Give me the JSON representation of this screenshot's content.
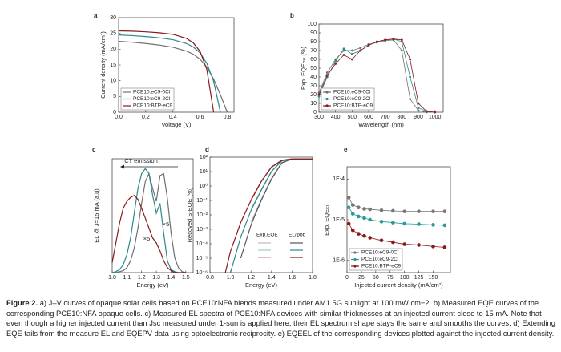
{
  "chart_data": [
    {
      "type": "line",
      "panel": "a",
      "xlabel": "Voltage (V)",
      "ylabel": "Current density (mA/cm²)",
      "x": [
        0,
        0.1,
        0.2,
        0.3,
        0.4,
        0.5,
        0.55,
        0.6,
        0.65,
        0.7,
        0.75,
        0.8
      ],
      "xlim": [
        0,
        0.85
      ],
      "xticks": [
        {
          "value": 0,
          "label": "0.0"
        },
        0.2,
        0.4,
        0.6,
        0.8
      ],
      "ylim": [
        0,
        30
      ],
      "yticks": [
        0,
        5,
        10,
        15,
        20,
        25,
        30
      ],
      "legend": "lower left",
      "series": [
        {
          "name": "PCE10:eC9-0Cl",
          "color": "#707070",
          "values": [
            22.5,
            22.2,
            21.8,
            21.3,
            20.6,
            19.4,
            18.4,
            16.8,
            14.3,
            10.5,
            5.5,
            0
          ]
        },
        {
          "name": "PCE10:eC9-2Cl",
          "color": "#2a8a8a",
          "values": [
            24.5,
            24.3,
            24.0,
            23.6,
            23.0,
            21.8,
            20.7,
            18.8,
            15.5,
            9.8,
            0,
            null
          ]
        },
        {
          "name": "PCE10:BTP-eC9",
          "color": "#8b1a1a",
          "values": [
            25.8,
            25.7,
            25.5,
            25.2,
            24.7,
            23.4,
            22.0,
            19.3,
            13.5,
            0,
            null,
            null
          ]
        }
      ]
    },
    {
      "type": "line",
      "panel": "b",
      "xlabel": "Wavelength (nm)",
      "ylabel": "Exp. EQE",
      "ylabel_sub": "PV",
      "ylabel_tail": " (%)",
      "markers": true,
      "x": [
        300,
        350,
        400,
        450,
        500,
        550,
        600,
        650,
        700,
        750,
        800,
        850,
        900,
        950,
        1000
      ],
      "xlim": [
        300,
        1050
      ],
      "xticks": [
        300,
        400,
        500,
        600,
        700,
        800,
        900,
        1000
      ],
      "ylim": [
        0,
        100
      ],
      "yticks": [
        0,
        10,
        20,
        30,
        40,
        50,
        60,
        70,
        80,
        90,
        100
      ],
      "legend": "lower left",
      "series": [
        {
          "name": "PCE10:eC9-0Cl",
          "color": "#707070",
          "values": [
            22,
            45,
            60,
            70,
            70,
            73,
            77,
            79,
            81,
            82,
            70,
            15,
            2,
            0,
            0
          ]
        },
        {
          "name": "PCE10:eC9-2Cl",
          "color": "#2a8a8a",
          "values": [
            18,
            40,
            58,
            72,
            66,
            70,
            76,
            80,
            82,
            83,
            80,
            40,
            5,
            1,
            0
          ]
        },
        {
          "name": "PCE10:BTP-eC9",
          "color": "#8b1a1a",
          "values": [
            20,
            42,
            55,
            65,
            60,
            70,
            76,
            80,
            82,
            83,
            82,
            60,
            10,
            1,
            0
          ]
        }
      ]
    },
    {
      "type": "line",
      "panel": "c",
      "xlabel": "Energy (eV)",
      "ylabel": "EL @ J=15 mA (a.u)",
      "annotations": [
        "CT emission",
        "×5",
        "×5"
      ],
      "x": [
        1.0,
        1.025,
        1.05,
        1.075,
        1.1,
        1.125,
        1.15,
        1.175,
        1.2,
        1.225,
        1.25,
        1.275,
        1.3,
        1.325,
        1.35,
        1.375,
        1.4,
        1.425,
        1.45,
        1.475,
        1.5
      ],
      "xlim": [
        1.0,
        1.55
      ],
      "xticks": [
        {
          "value": 1.0,
          "label": "1.0"
        },
        1.1,
        1.2,
        1.3,
        1.4,
        1.5
      ],
      "ylim": [
        0,
        1.15
      ],
      "series": [
        {
          "color": "#707070",
          "values": [
            0,
            0,
            0.01,
            0.02,
            0.05,
            0.12,
            0.25,
            0.45,
            0.7,
            0.92,
            1.0,
            0.85,
            0.72,
            0.98,
            1.0,
            0.75,
            0.4,
            0.15,
            0.05,
            0.01,
            0
          ]
        },
        {
          "color": "#2a8a8a",
          "values": [
            0,
            0.01,
            0.03,
            0.08,
            0.18,
            0.35,
            0.6,
            0.85,
            1.0,
            1.05,
            1.0,
            0.78,
            0.6,
            0.7,
            0.4,
            0.12,
            0.03,
            0.01,
            0,
            0,
            0
          ]
        },
        {
          "color": "#8b1a1a",
          "values": [
            0.1,
            0.3,
            0.5,
            0.65,
            0.72,
            0.76,
            0.78,
            0.74,
            0.65,
            0.55,
            0.45,
            0.35,
            0.3,
            0.22,
            0.12,
            0.05,
            0.02,
            0,
            0,
            0,
            0
          ]
        }
      ]
    },
    {
      "type": "line",
      "panel": "d",
      "xlabel": "Energy (eV)",
      "ylabel": "Recoved S-EQE (%)",
      "ylog": true,
      "legend_headers": [
        "Exp.EQE",
        "EL/φbb"
      ],
      "x": [
        0.95,
        1.0,
        1.1,
        1.2,
        1.3,
        1.4,
        1.5,
        1.6,
        1.7,
        1.8
      ],
      "xlim": [
        0.8,
        1.8
      ],
      "xticks": [
        0.8,
        {
          "value": 1.0,
          "label": "1.0"
        },
        1.2,
        1.4,
        1.6,
        1.8
      ],
      "ylim": [
        1e-06,
        100
      ],
      "yticks": [
        {
          "value": 1e-06,
          "label": "10⁻⁶"
        },
        {
          "value": 1e-05,
          "label": "10⁻⁵"
        },
        {
          "value": 0.0001,
          "label": "10⁻⁴"
        },
        {
          "value": 0.001,
          "label": "10⁻³"
        },
        {
          "value": 0.01,
          "label": "10⁻²"
        },
        {
          "value": 0.1,
          "label": "10⁻¹"
        },
        {
          "value": 1,
          "label": "10⁰"
        },
        {
          "value": 10,
          "label": "10¹"
        },
        {
          "value": 100,
          "label": "10²"
        }
      ],
      "series": [
        {
          "color": "#bbbbbb",
          "values": [
            null,
            null,
            null,
            0.003,
            0.12,
            3.5,
            42,
            76,
            76,
            76
          ]
        },
        {
          "color": "#99cccc",
          "values": [
            null,
            null,
            null,
            0.025,
            0.55,
            11,
            57,
            76,
            76,
            76
          ]
        },
        {
          "color": "#cc9999",
          "values": [
            null,
            null,
            null,
            0.12,
            2.2,
            22,
            62,
            76,
            76,
            76
          ]
        },
        {
          "color": "#555555",
          "values": [
            null,
            null,
            1e-05,
            0.002,
            0.1,
            3,
            40,
            75,
            75,
            75
          ]
        },
        {
          "color": "#2a8a8a",
          "values": [
            null,
            1e-06,
            0.0003,
            0.02,
            0.5,
            10,
            55,
            75,
            75,
            75
          ]
        },
        {
          "color": "#8b1a1a",
          "values": [
            1e-06,
            3e-05,
            0.003,
            0.1,
            2,
            20,
            60,
            75,
            75,
            75
          ]
        }
      ]
    },
    {
      "type": "line",
      "panel": "e",
      "xlabel": "Injected current density (mA/cm²)",
      "ylabel": "Exp. EQE",
      "ylabel_sub": "EL",
      "ylog": true,
      "markers": true,
      "x": [
        3,
        10,
        20,
        30,
        40,
        60,
        80,
        100,
        125,
        150,
        170
      ],
      "xlim": [
        0,
        180
      ],
      "xticks": [
        0,
        25,
        50,
        75,
        100,
        125,
        150
      ],
      "ylim": [
        5e-07,
        0.0002
      ],
      "yticks": [
        {
          "value": 1e-06,
          "label": "1E-6"
        },
        {
          "value": 1e-05,
          "label": "1E-5"
        },
        {
          "value": 0.0001,
          "label": "1E-4"
        }
      ],
      "legend": "lower left",
      "series": [
        {
          "name": "PCE10:eC9-0Cl",
          "color": "#777777",
          "values": [
            3.5e-05,
            2.3e-05,
            2e-05,
            1.85e-05,
            1.8e-05,
            1.7e-05,
            1.65e-05,
            1.6e-05,
            1.6e-05,
            1.6e-05,
            1.6e-05
          ]
        },
        {
          "name": "PCE10:eC9-2Cl",
          "color": "#2a9a9a",
          "values": [
            2e-05,
            1.4e-05,
            1.2e-05,
            1.1e-05,
            1e-05,
            9e-06,
            8.5e-06,
            8e-06,
            7.8e-06,
            7.5e-06,
            7.3e-06
          ]
        },
        {
          "name": "PCE10:BTP-eC9",
          "color": "#8b1a1a",
          "values": [
            8e-06,
            5.5e-06,
            4.5e-06,
            4e-06,
            3.6e-06,
            3.1e-06,
            2.8e-06,
            2.5e-06,
            2.4e-06,
            2.2e-06,
            2.1e-06
          ]
        }
      ]
    }
  ],
  "caption": {
    "label": "Figure 2.",
    "text": "a) J–V curves of opaque solar cells based on PCE10:NFA blends measured under AM1.5G sunlight at 100 mW cm−2. b) Measured EQE curves of the corresponding PCE10:NFA opaque cells. c) Measured EL spectra of PCE10:NFA devices with similar thicknesses at an injected current close to 15 mA. Note that even though a higher injected current than Jsc measured under 1-sun is applied here, their EL spectrum shape stays the same and smooths the curves. d) Extending EQE tails from the measure EL and EQEPV data using optoelectronic reciprocity. e) EQEEL of the corresponding devices plotted against the injected current density."
  }
}
